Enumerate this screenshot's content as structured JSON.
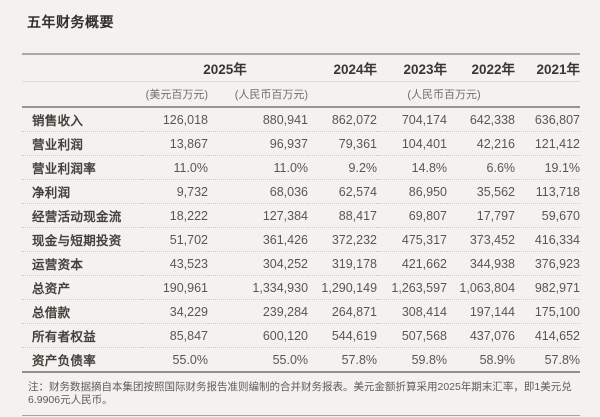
{
  "page_title": "五年财务概要",
  "table": {
    "year_headers": [
      "2025年",
      "2024年",
      "2023年",
      "2022年",
      "2021年"
    ],
    "units": {
      "usd_2025": "(美元百万元)",
      "rmb_2025": "(人民币百万元)",
      "rmb_group": "(人民币百万元)"
    },
    "rows": [
      {
        "label": "销售收入",
        "values": [
          "126,018",
          "880,941",
          "862,072",
          "704,174",
          "642,338",
          "636,807"
        ]
      },
      {
        "label": "营业利润",
        "values": [
          "13,867",
          "96,937",
          "79,361",
          "104,401",
          "42,216",
          "121,412"
        ]
      },
      {
        "label": "营业利润率",
        "values": [
          "11.0%",
          "11.0%",
          "9.2%",
          "14.8%",
          "6.6%",
          "19.1%"
        ]
      },
      {
        "label": "净利润",
        "values": [
          "9,732",
          "68,036",
          "62,574",
          "86,950",
          "35,562",
          "113,718"
        ]
      },
      {
        "label": "经营活动现金流",
        "values": [
          "18,222",
          "127,384",
          "88,417",
          "69,807",
          "17,797",
          "59,670"
        ]
      },
      {
        "label": "现金与短期投资",
        "values": [
          "51,702",
          "361,426",
          "372,232",
          "475,317",
          "373,452",
          "416,334"
        ]
      },
      {
        "label": "运营资本",
        "values": [
          "43,523",
          "304,252",
          "319,178",
          "421,662",
          "344,938",
          "376,923"
        ]
      },
      {
        "label": "总资产",
        "values": [
          "190,961",
          "1,334,930",
          "1,290,149",
          "1,263,597",
          "1,063,804",
          "982,971"
        ]
      },
      {
        "label": "总借款",
        "values": [
          "34,229",
          "239,284",
          "264,871",
          "308,414",
          "197,144",
          "175,100"
        ]
      },
      {
        "label": "所有者权益",
        "values": [
          "85,847",
          "600,120",
          "544,619",
          "507,568",
          "437,076",
          "414,652"
        ]
      },
      {
        "label": "资产负债率",
        "values": [
          "55.0%",
          "55.0%",
          "57.8%",
          "59.8%",
          "58.9%",
          "57.8%"
        ]
      }
    ]
  },
  "footnote": "注：财务数据摘自本集团按照国际财务报告准则编制的合并财务报表。美元金额折算采用2025年期末汇率，即1美元兑6.9906元人民币。",
  "colors": {
    "background": "#f3f2ef",
    "rule_strong": "#96948f",
    "rule_light": "#dddbd7",
    "text_primary": "#45423e",
    "text_secondary": "#5a5753"
  }
}
